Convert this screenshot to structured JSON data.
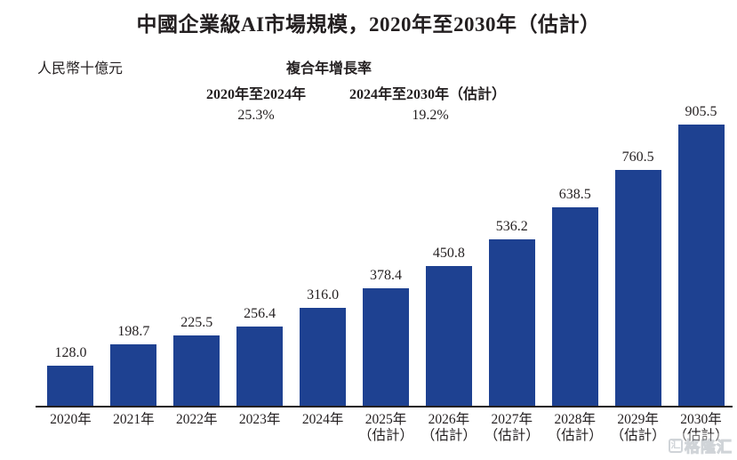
{
  "title": "中國企業級AI市場規模，2020年至2030年（估計）",
  "unit_label": "人民幣十億元",
  "cagr": {
    "header": "複合年增長率",
    "periods": [
      {
        "label": "2020年至2024年",
        "value": "25.3%"
      },
      {
        "label": "2024年至2030年（估計）",
        "value": "19.2%"
      }
    ]
  },
  "chart_data": {
    "type": "bar",
    "title": "中國企業級AI市場規模，2020年至2030年（估計）",
    "ylabel": "人民幣十億元",
    "xlabel": "",
    "ylim": [
      0,
      950
    ],
    "grid": false,
    "bar_color": "#1e4191",
    "categories": [
      {
        "year": "2020年",
        "note": ""
      },
      {
        "year": "2021年",
        "note": ""
      },
      {
        "year": "2022年",
        "note": ""
      },
      {
        "year": "2023年",
        "note": ""
      },
      {
        "year": "2024年",
        "note": ""
      },
      {
        "year": "2025年",
        "note": "（估計）"
      },
      {
        "year": "2026年",
        "note": "（估計）"
      },
      {
        "year": "2027年",
        "note": "（估計）"
      },
      {
        "year": "2028年",
        "note": "（估計）"
      },
      {
        "year": "2029年",
        "note": "（估計）"
      },
      {
        "year": "2030年",
        "note": "（估計）"
      }
    ],
    "values": [
      128.0,
      198.7,
      225.5,
      256.4,
      316.0,
      378.4,
      450.8,
      536.2,
      638.5,
      760.5,
      905.5
    ],
    "annotations": {
      "cagr_header": "複合年增長率",
      "cagr_2020_2024": "25.3%",
      "cagr_2024_2030": "19.2%"
    }
  },
  "watermark": {
    "text": "格隆汇",
    "mark": "汇"
  }
}
